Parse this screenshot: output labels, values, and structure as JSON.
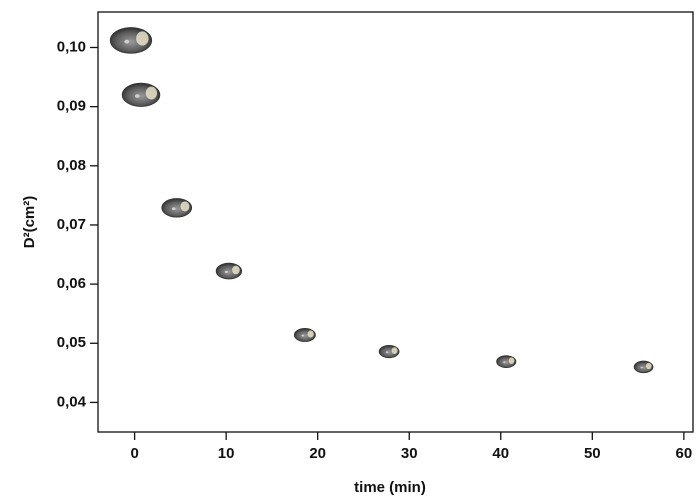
{
  "chart_data": {
    "type": "scatter",
    "x_label": "time (min)",
    "y_label": "D²(cm²)",
    "x": [
      -0.4,
      0.7,
      4.6,
      10.3,
      18.6,
      27.8,
      40.6,
      55.6
    ],
    "values": [
      0.1012,
      0.092,
      0.0729,
      0.0622,
      0.0514,
      0.0486,
      0.0469,
      0.046
    ],
    "xlim": [
      -4,
      61
    ],
    "ylim": [
      0.035,
      0.106
    ],
    "xticks": [
      0,
      10,
      20,
      30,
      40,
      50,
      60
    ],
    "yticks": [
      {
        "value": 0.04,
        "label": "0,04"
      },
      {
        "value": 0.05,
        "label": "0,05"
      },
      {
        "value": 0.06,
        "label": "0,06"
      },
      {
        "value": 0.07,
        "label": "0,07"
      },
      {
        "value": 0.08,
        "label": "0,08"
      },
      {
        "value": 0.09,
        "label": "0,09"
      },
      {
        "value": 0.1,
        "label": "0,10"
      }
    ],
    "color": "#6e6e6e"
  }
}
